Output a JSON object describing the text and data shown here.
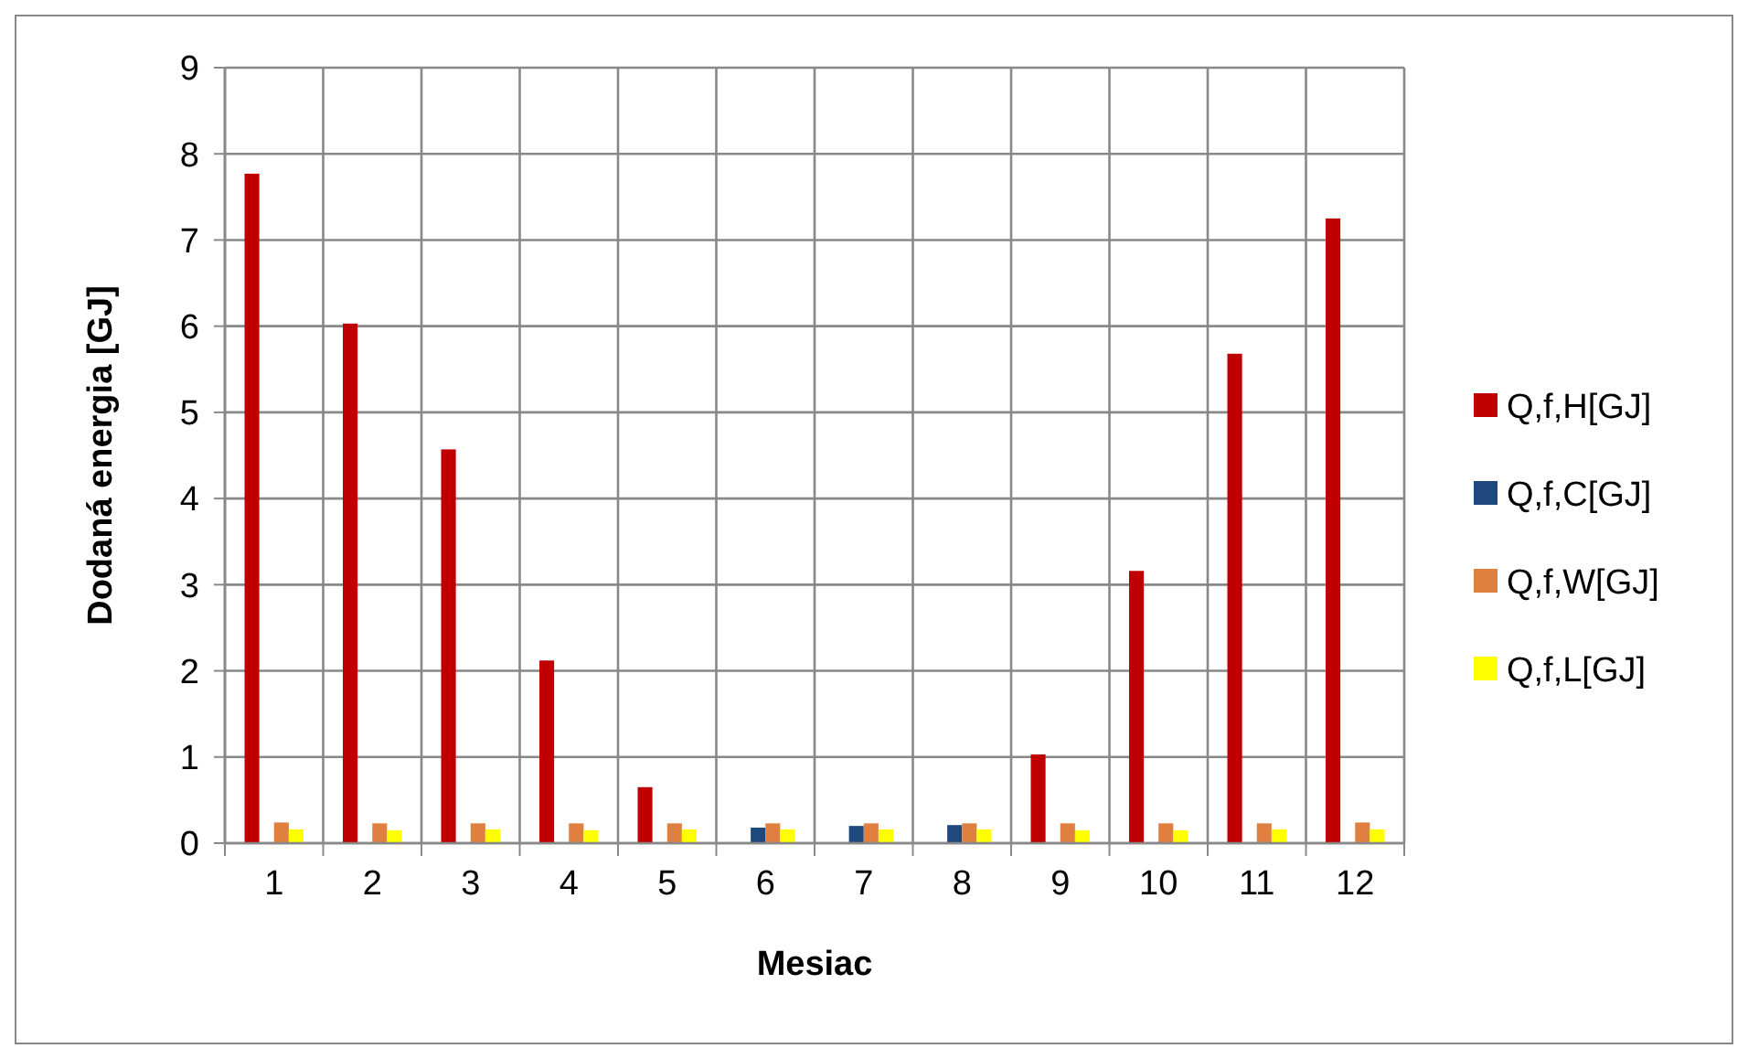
{
  "chart_data": {
    "type": "bar",
    "xlabel": "Mesiac",
    "ylabel": "Dodaná energia [GJ]",
    "categories": [
      "1",
      "2",
      "3",
      "4",
      "5",
      "6",
      "7",
      "8",
      "9",
      "10",
      "11",
      "12"
    ],
    "series": [
      {
        "name": "Q,f,H[GJ]",
        "color": "#c00000",
        "values": [
          7.77,
          6.03,
          4.57,
          2.12,
          0.65,
          0,
          0,
          0,
          1.03,
          3.16,
          5.68,
          7.25
        ]
      },
      {
        "name": "Q,f,C[GJ]",
        "color": "#1f497d",
        "values": [
          0,
          0,
          0,
          0,
          0,
          0.18,
          0.2,
          0.21,
          0,
          0,
          0,
          0
        ]
      },
      {
        "name": "Q,f,W[GJ]",
        "color": "#e08040",
        "values": [
          0.24,
          0.23,
          0.23,
          0.23,
          0.23,
          0.23,
          0.23,
          0.23,
          0.23,
          0.23,
          0.23,
          0.24
        ]
      },
      {
        "name": "Q,f,L[GJ]",
        "color": "#ffff00",
        "values": [
          0.16,
          0.15,
          0.16,
          0.15,
          0.16,
          0.16,
          0.16,
          0.16,
          0.15,
          0.15,
          0.16,
          0.16
        ]
      }
    ],
    "ylim": [
      0,
      9
    ],
    "yticks": [
      0,
      1,
      2,
      3,
      4,
      5,
      6,
      7,
      8,
      9
    ],
    "grid": true,
    "legend": "right"
  }
}
